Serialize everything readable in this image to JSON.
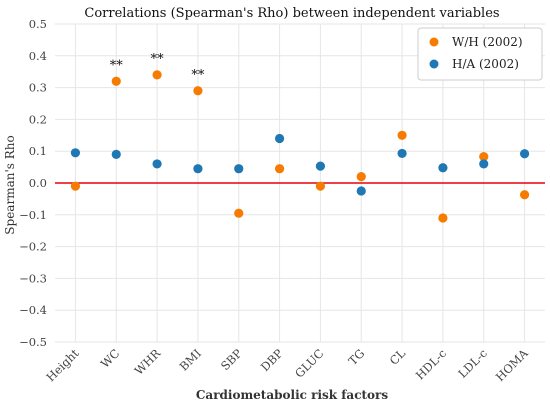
{
  "chart_data": {
    "type": "scatter",
    "title": "Correlations (Spearman's Rho) between independent variables",
    "xlabel": "Cardiometabolic risk factors",
    "ylabel": "Spearman's Rho",
    "categories": [
      "Height",
      "WC",
      "WHR",
      "BMI",
      "SBP",
      "DBP",
      "GLUC",
      "TG",
      "CL",
      "HDL-c",
      "LDL-c",
      "HOMA"
    ],
    "ylim": [
      -0.5,
      0.5
    ],
    "yticks": [
      0.5,
      0.4,
      0.3,
      0.2,
      0.1,
      0.0,
      -0.1,
      -0.2,
      -0.3,
      -0.4,
      -0.5
    ],
    "ytick_labels": [
      "0.5",
      "0.4",
      "0.3",
      "0.2",
      "0.1",
      "0.0",
      "−0.1",
      "−0.2",
      "−0.3",
      "−0.4",
      "−0.5"
    ],
    "grid": true,
    "legend_position": "top-right",
    "reference_line": {
      "y": 0.0,
      "color": "#e8000b"
    },
    "series": [
      {
        "name": "W/H (2002)",
        "color": "#f57c00",
        "values": [
          -0.01,
          0.32,
          0.34,
          0.29,
          -0.095,
          0.045,
          -0.01,
          0.02,
          0.15,
          -0.11,
          0.083,
          -0.037
        ]
      },
      {
        "name": "H/A (2002)",
        "color": "#1f77b4",
        "values": [
          0.095,
          0.09,
          0.06,
          0.045,
          0.045,
          0.14,
          0.053,
          -0.025,
          0.093,
          0.048,
          0.06,
          0.092
        ]
      }
    ],
    "annotations": [
      {
        "category": "WC",
        "y": 0.37,
        "text": "**"
      },
      {
        "category": "WHR",
        "y": 0.39,
        "text": "**"
      },
      {
        "category": "BMI",
        "y": 0.34,
        "text": "**"
      }
    ]
  }
}
